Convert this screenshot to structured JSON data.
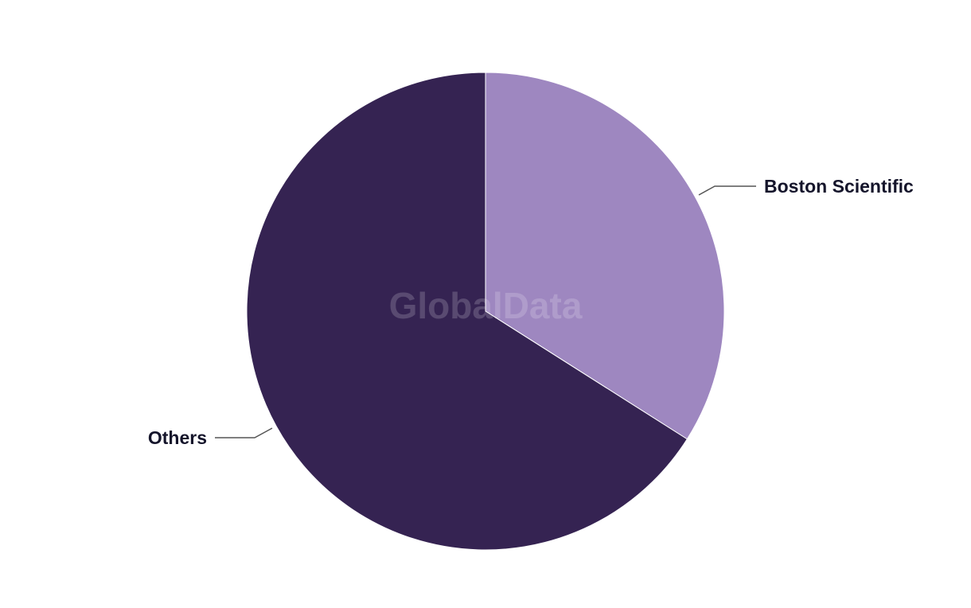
{
  "chart_data": {
    "type": "pie",
    "slices": [
      {
        "label": "Boston Scientific",
        "value": 34,
        "color": "#9e87c0"
      },
      {
        "label": "Others",
        "value": 66,
        "color": "#352352"
      }
    ],
    "start_angle": "12 o'clock",
    "direction": "clockwise",
    "legend": "none (leader-line labels)"
  },
  "watermark": "GlobalData"
}
